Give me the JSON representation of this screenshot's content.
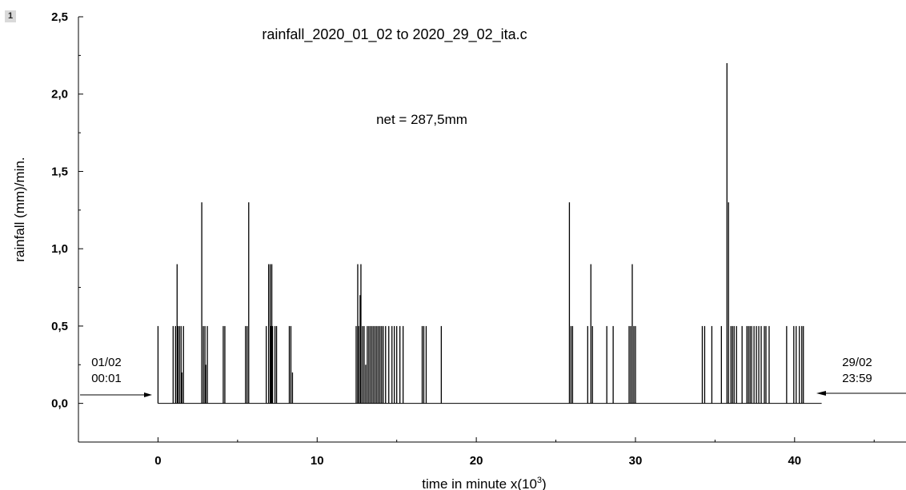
{
  "panel_label": "1",
  "chart_data": {
    "type": "bar",
    "title": "rainfall_2020_01_02 to 2020_29_02_ita.c",
    "annotation": "net = 287,5mm",
    "xlabel": "time in minute x(10",
    "xlabel_exponent": "3",
    "xlabel_suffix": ")",
    "ylabel": "rainfall (mm)/min.",
    "xlim": [
      -5,
      47
    ],
    "ylim": [
      -0.25,
      2.5
    ],
    "x_ticks": [
      0,
      10,
      20,
      30,
      40
    ],
    "x_tick_labels": [
      "0",
      "10",
      "20",
      "30",
      "40"
    ],
    "y_ticks": [
      0,
      0.5,
      1.0,
      1.5,
      2.0,
      2.5
    ],
    "y_tick_labels": [
      "0,0",
      "0,5",
      "1,0",
      "1,5",
      "2,0",
      "2,5"
    ],
    "baseline": {
      "x_start": 0,
      "x_end": 41.7,
      "y": 0
    },
    "start_marker": {
      "line1": "01/02",
      "line2": "00:01"
    },
    "end_marker": {
      "line1": "29/02",
      "line2": "23:59"
    },
    "x": [
      0.0,
      0.95,
      1.1,
      1.2,
      1.25,
      1.35,
      1.45,
      1.5,
      1.6,
      2.75,
      2.85,
      2.95,
      3.0,
      3.1,
      4.1,
      4.2,
      5.5,
      5.6,
      5.7,
      6.8,
      6.95,
      7.05,
      7.1,
      7.15,
      7.2,
      7.35,
      7.45,
      8.25,
      8.35,
      8.45,
      12.45,
      12.55,
      12.6,
      12.7,
      12.75,
      12.85,
      12.95,
      13.05,
      13.15,
      13.25,
      13.35,
      13.45,
      13.55,
      13.65,
      13.75,
      13.85,
      13.95,
      14.05,
      14.15,
      14.3,
      14.5,
      14.7,
      14.85,
      15.0,
      15.2,
      15.4,
      16.6,
      16.7,
      16.85,
      17.8,
      25.85,
      25.95,
      26.05,
      27.0,
      27.2,
      27.3,
      28.2,
      28.6,
      29.6,
      29.7,
      29.8,
      29.9,
      30.0,
      34.2,
      34.35,
      34.8,
      35.4,
      35.75,
      35.85,
      36.0,
      36.1,
      36.2,
      36.35,
      36.7,
      37.0,
      37.1,
      37.2,
      37.3,
      37.45,
      37.6,
      37.75,
      37.9,
      38.1,
      38.2,
      38.4,
      39.5,
      39.95,
      40.1,
      40.3,
      40.45,
      40.55
    ],
    "values": [
      0.5,
      0.5,
      0.5,
      0.9,
      0.5,
      0.5,
      0.5,
      0.2,
      0.5,
      1.3,
      0.5,
      0.5,
      0.25,
      0.5,
      0.5,
      0.5,
      0.5,
      0.5,
      1.3,
      0.5,
      0.9,
      0.9,
      0.5,
      0.9,
      0.5,
      0.5,
      0.5,
      0.5,
      0.5,
      0.2,
      0.5,
      0.9,
      0.5,
      0.7,
      0.9,
      0.5,
      0.5,
      0.25,
      0.5,
      0.5,
      0.5,
      0.5,
      0.5,
      0.5,
      0.5,
      0.5,
      0.5,
      0.5,
      0.5,
      0.5,
      0.5,
      0.5,
      0.5,
      0.5,
      0.5,
      0.5,
      0.5,
      0.5,
      0.5,
      0.5,
      1.3,
      0.5,
      0.5,
      0.5,
      0.9,
      0.5,
      0.5,
      0.5,
      0.5,
      0.5,
      0.9,
      0.5,
      0.5,
      0.5,
      0.5,
      0.5,
      0.5,
      2.2,
      1.3,
      0.5,
      0.5,
      0.5,
      0.5,
      0.5,
      0.5,
      0.5,
      0.5,
      0.5,
      0.5,
      0.5,
      0.5,
      0.5,
      0.5,
      0.5,
      0.5,
      0.5,
      0.5,
      0.5,
      0.5,
      0.5,
      0.5
    ]
  }
}
